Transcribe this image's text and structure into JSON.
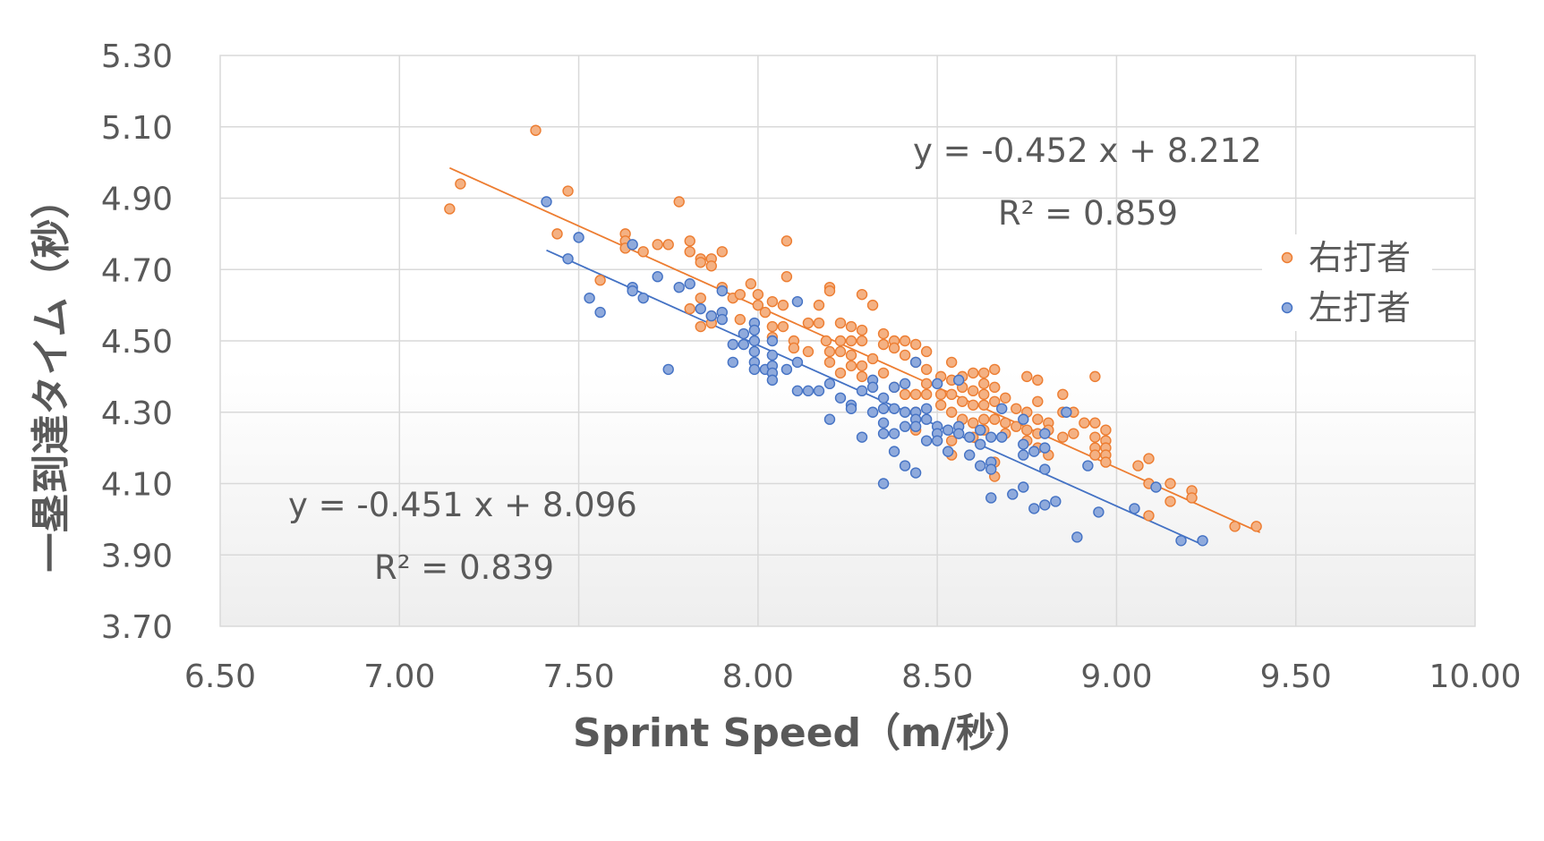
{
  "chart_data": {
    "type": "scatter",
    "xlabel": "Sprint Speed（m/秒）",
    "ylabel": "一塁到達タイム（秒）",
    "xlim": [
      6.5,
      10.0
    ],
    "ylim": [
      3.7,
      5.3
    ],
    "x_ticks": [
      "6.50",
      "7.00",
      "7.50",
      "8.00",
      "8.50",
      "9.00",
      "9.50",
      "10.00"
    ],
    "y_ticks": [
      "5.30",
      "5.10",
      "4.90",
      "4.70",
      "4.50",
      "4.30",
      "4.10",
      "3.90",
      "3.70"
    ],
    "grid": true,
    "legend_position": "right",
    "series": [
      {
        "name": "右打者",
        "color": "#ED7D31",
        "trendline": {
          "slope": -0.452,
          "intercept": 8.212,
          "x_range": [
            7.14,
            9.4
          ]
        },
        "equation": "y = -0.452 x + 8.212",
        "r2": "R² = 0.859",
        "points": [
          [
            7.14,
            4.87
          ],
          [
            7.17,
            4.94
          ],
          [
            7.38,
            5.09
          ],
          [
            7.44,
            4.8
          ],
          [
            7.47,
            4.92
          ],
          [
            7.56,
            4.67
          ],
          [
            7.63,
            4.8
          ],
          [
            7.63,
            4.78
          ],
          [
            7.63,
            4.76
          ],
          [
            7.68,
            4.75
          ],
          [
            7.72,
            4.77
          ],
          [
            7.75,
            4.77
          ],
          [
            7.78,
            4.89
          ],
          [
            7.81,
            4.78
          ],
          [
            7.81,
            4.75
          ],
          [
            7.84,
            4.73
          ],
          [
            7.84,
            4.72
          ],
          [
            7.87,
            4.73
          ],
          [
            7.87,
            4.71
          ],
          [
            7.9,
            4.75
          ],
          [
            7.81,
            4.59
          ],
          [
            7.84,
            4.62
          ],
          [
            7.84,
            4.54
          ],
          [
            7.87,
            4.57
          ],
          [
            7.87,
            4.55
          ],
          [
            7.9,
            4.65
          ],
          [
            7.93,
            4.62
          ],
          [
            7.95,
            4.63
          ],
          [
            7.95,
            4.56
          ],
          [
            7.98,
            4.66
          ],
          [
            8.0,
            4.63
          ],
          [
            8.0,
            4.6
          ],
          [
            8.02,
            4.58
          ],
          [
            8.04,
            4.61
          ],
          [
            8.04,
            4.54
          ],
          [
            8.04,
            4.51
          ],
          [
            8.07,
            4.6
          ],
          [
            8.07,
            4.54
          ],
          [
            8.08,
            4.68
          ],
          [
            8.08,
            4.78
          ],
          [
            8.1,
            4.5
          ],
          [
            8.1,
            4.48
          ],
          [
            8.14,
            4.55
          ],
          [
            8.14,
            4.47
          ],
          [
            8.17,
            4.6
          ],
          [
            8.17,
            4.55
          ],
          [
            8.19,
            4.5
          ],
          [
            8.2,
            4.65
          ],
          [
            8.2,
            4.64
          ],
          [
            8.2,
            4.47
          ],
          [
            8.2,
            4.44
          ],
          [
            8.23,
            4.55
          ],
          [
            8.23,
            4.5
          ],
          [
            8.23,
            4.47
          ],
          [
            8.23,
            4.41
          ],
          [
            8.26,
            4.54
          ],
          [
            8.26,
            4.5
          ],
          [
            8.26,
            4.46
          ],
          [
            8.26,
            4.43
          ],
          [
            8.29,
            4.63
          ],
          [
            8.29,
            4.53
          ],
          [
            8.29,
            4.5
          ],
          [
            8.29,
            4.43
          ],
          [
            8.29,
            4.4
          ],
          [
            8.32,
            4.6
          ],
          [
            8.32,
            4.45
          ],
          [
            8.35,
            4.52
          ],
          [
            8.35,
            4.49
          ],
          [
            8.35,
            4.41
          ],
          [
            8.38,
            4.5
          ],
          [
            8.38,
            4.48
          ],
          [
            8.38,
            4.37
          ],
          [
            8.41,
            4.5
          ],
          [
            8.41,
            4.46
          ],
          [
            8.41,
            4.35
          ],
          [
            8.44,
            4.49
          ],
          [
            8.44,
            4.44
          ],
          [
            8.44,
            4.35
          ],
          [
            8.44,
            4.3
          ],
          [
            8.44,
            4.25
          ],
          [
            8.47,
            4.47
          ],
          [
            8.47,
            4.42
          ],
          [
            8.47,
            4.38
          ],
          [
            8.47,
            4.35
          ],
          [
            8.51,
            4.4
          ],
          [
            8.51,
            4.35
          ],
          [
            8.51,
            4.32
          ],
          [
            8.54,
            4.44
          ],
          [
            8.54,
            4.39
          ],
          [
            8.54,
            4.35
          ],
          [
            8.54,
            4.3
          ],
          [
            8.54,
            4.22
          ],
          [
            8.54,
            4.18
          ],
          [
            8.57,
            4.4
          ],
          [
            8.57,
            4.37
          ],
          [
            8.57,
            4.33
          ],
          [
            8.57,
            4.28
          ],
          [
            8.6,
            4.41
          ],
          [
            8.6,
            4.36
          ],
          [
            8.6,
            4.32
          ],
          [
            8.6,
            4.27
          ],
          [
            8.6,
            4.23
          ],
          [
            8.63,
            4.41
          ],
          [
            8.63,
            4.38
          ],
          [
            8.63,
            4.35
          ],
          [
            8.63,
            4.32
          ],
          [
            8.63,
            4.28
          ],
          [
            8.63,
            4.25
          ],
          [
            8.66,
            4.42
          ],
          [
            8.66,
            4.37
          ],
          [
            8.66,
            4.33
          ],
          [
            8.66,
            4.28
          ],
          [
            8.66,
            4.16
          ],
          [
            8.66,
            4.12
          ],
          [
            8.69,
            4.34
          ],
          [
            8.69,
            4.27
          ],
          [
            8.69,
            4.24
          ],
          [
            8.72,
            4.31
          ],
          [
            8.72,
            4.26
          ],
          [
            8.75,
            4.4
          ],
          [
            8.75,
            4.3
          ],
          [
            8.75,
            4.25
          ],
          [
            8.75,
            4.22
          ],
          [
            8.78,
            4.39
          ],
          [
            8.78,
            4.33
          ],
          [
            8.78,
            4.28
          ],
          [
            8.78,
            4.24
          ],
          [
            8.78,
            4.2
          ],
          [
            8.81,
            4.27
          ],
          [
            8.81,
            4.25
          ],
          [
            8.81,
            4.18
          ],
          [
            8.85,
            4.35
          ],
          [
            8.85,
            4.3
          ],
          [
            8.85,
            4.23
          ],
          [
            8.88,
            4.3
          ],
          [
            8.88,
            4.24
          ],
          [
            8.91,
            4.27
          ],
          [
            8.94,
            4.4
          ],
          [
            8.94,
            4.27
          ],
          [
            8.94,
            4.23
          ],
          [
            8.94,
            4.2
          ],
          [
            8.94,
            4.18
          ],
          [
            8.97,
            4.25
          ],
          [
            8.97,
            4.22
          ],
          [
            8.97,
            4.2
          ],
          [
            8.97,
            4.18
          ],
          [
            8.97,
            4.16
          ],
          [
            9.06,
            4.15
          ],
          [
            9.09,
            4.17
          ],
          [
            9.09,
            4.1
          ],
          [
            9.09,
            4.01
          ],
          [
            9.15,
            4.1
          ],
          [
            9.15,
            4.05
          ],
          [
            9.21,
            4.08
          ],
          [
            9.21,
            4.06
          ],
          [
            9.33,
            3.98
          ],
          [
            9.39,
            3.98
          ]
        ]
      },
      {
        "name": "左打者",
        "color": "#4472C4",
        "trendline": {
          "slope": -0.451,
          "intercept": 8.096,
          "x_range": [
            7.41,
            9.24
          ]
        },
        "equation": "y = -0.451 x + 8.096",
        "r2": "R² = 0.839",
        "points": [
          [
            7.41,
            4.89
          ],
          [
            7.47,
            4.73
          ],
          [
            7.5,
            4.79
          ],
          [
            7.53,
            4.62
          ],
          [
            7.56,
            4.58
          ],
          [
            7.65,
            4.77
          ],
          [
            7.65,
            4.65
          ],
          [
            7.65,
            4.64
          ],
          [
            7.68,
            4.62
          ],
          [
            7.72,
            4.68
          ],
          [
            7.75,
            4.42
          ],
          [
            7.78,
            4.65
          ],
          [
            7.81,
            4.66
          ],
          [
            7.84,
            4.59
          ],
          [
            7.87,
            4.57
          ],
          [
            7.9,
            4.64
          ],
          [
            7.9,
            4.58
          ],
          [
            7.9,
            4.56
          ],
          [
            7.93,
            4.49
          ],
          [
            7.93,
            4.44
          ],
          [
            7.96,
            4.52
          ],
          [
            7.96,
            4.49
          ],
          [
            7.99,
            4.55
          ],
          [
            7.99,
            4.53
          ],
          [
            7.99,
            4.5
          ],
          [
            7.99,
            4.47
          ],
          [
            7.99,
            4.44
          ],
          [
            7.99,
            4.42
          ],
          [
            8.02,
            4.42
          ],
          [
            8.04,
            4.5
          ],
          [
            8.04,
            4.46
          ],
          [
            8.04,
            4.43
          ],
          [
            8.04,
            4.41
          ],
          [
            8.04,
            4.39
          ],
          [
            8.08,
            4.42
          ],
          [
            8.11,
            4.44
          ],
          [
            8.11,
            4.36
          ],
          [
            8.11,
            4.61
          ],
          [
            8.14,
            4.36
          ],
          [
            8.17,
            4.36
          ],
          [
            8.2,
            4.38
          ],
          [
            8.2,
            4.28
          ],
          [
            8.23,
            4.34
          ],
          [
            8.26,
            4.32
          ],
          [
            8.26,
            4.31
          ],
          [
            8.29,
            4.36
          ],
          [
            8.29,
            4.23
          ],
          [
            8.32,
            4.39
          ],
          [
            8.32,
            4.37
          ],
          [
            8.32,
            4.3
          ],
          [
            8.35,
            4.34
          ],
          [
            8.35,
            4.31
          ],
          [
            8.35,
            4.24
          ],
          [
            8.35,
            4.27
          ],
          [
            8.35,
            4.1
          ],
          [
            8.38,
            4.37
          ],
          [
            8.38,
            4.31
          ],
          [
            8.38,
            4.24
          ],
          [
            8.38,
            4.19
          ],
          [
            8.41,
            4.38
          ],
          [
            8.41,
            4.3
          ],
          [
            8.41,
            4.26
          ],
          [
            8.41,
            4.15
          ],
          [
            8.44,
            4.44
          ],
          [
            8.44,
            4.3
          ],
          [
            8.44,
            4.28
          ],
          [
            8.44,
            4.26
          ],
          [
            8.44,
            4.13
          ],
          [
            8.47,
            4.31
          ],
          [
            8.47,
            4.28
          ],
          [
            8.47,
            4.22
          ],
          [
            8.5,
            4.38
          ],
          [
            8.5,
            4.26
          ],
          [
            8.5,
            4.24
          ],
          [
            8.5,
            4.22
          ],
          [
            8.53,
            4.25
          ],
          [
            8.53,
            4.19
          ],
          [
            8.56,
            4.39
          ],
          [
            8.56,
            4.26
          ],
          [
            8.56,
            4.24
          ],
          [
            8.59,
            4.23
          ],
          [
            8.59,
            4.18
          ],
          [
            8.62,
            4.25
          ],
          [
            8.62,
            4.21
          ],
          [
            8.62,
            4.15
          ],
          [
            8.65,
            4.23
          ],
          [
            8.65,
            4.16
          ],
          [
            8.65,
            4.14
          ],
          [
            8.65,
            4.06
          ],
          [
            8.68,
            4.31
          ],
          [
            8.68,
            4.23
          ],
          [
            8.71,
            4.07
          ],
          [
            8.74,
            4.28
          ],
          [
            8.74,
            4.21
          ],
          [
            8.74,
            4.18
          ],
          [
            8.74,
            4.09
          ],
          [
            8.77,
            4.19
          ],
          [
            8.77,
            4.03
          ],
          [
            8.8,
            4.24
          ],
          [
            8.8,
            4.2
          ],
          [
            8.8,
            4.14
          ],
          [
            8.8,
            4.04
          ],
          [
            8.83,
            4.05
          ],
          [
            8.86,
            4.3
          ],
          [
            8.89,
            3.95
          ],
          [
            8.92,
            4.15
          ],
          [
            8.95,
            4.02
          ],
          [
            9.05,
            4.03
          ],
          [
            9.11,
            4.09
          ],
          [
            9.18,
            3.94
          ],
          [
            9.24,
            3.94
          ]
        ]
      }
    ]
  }
}
